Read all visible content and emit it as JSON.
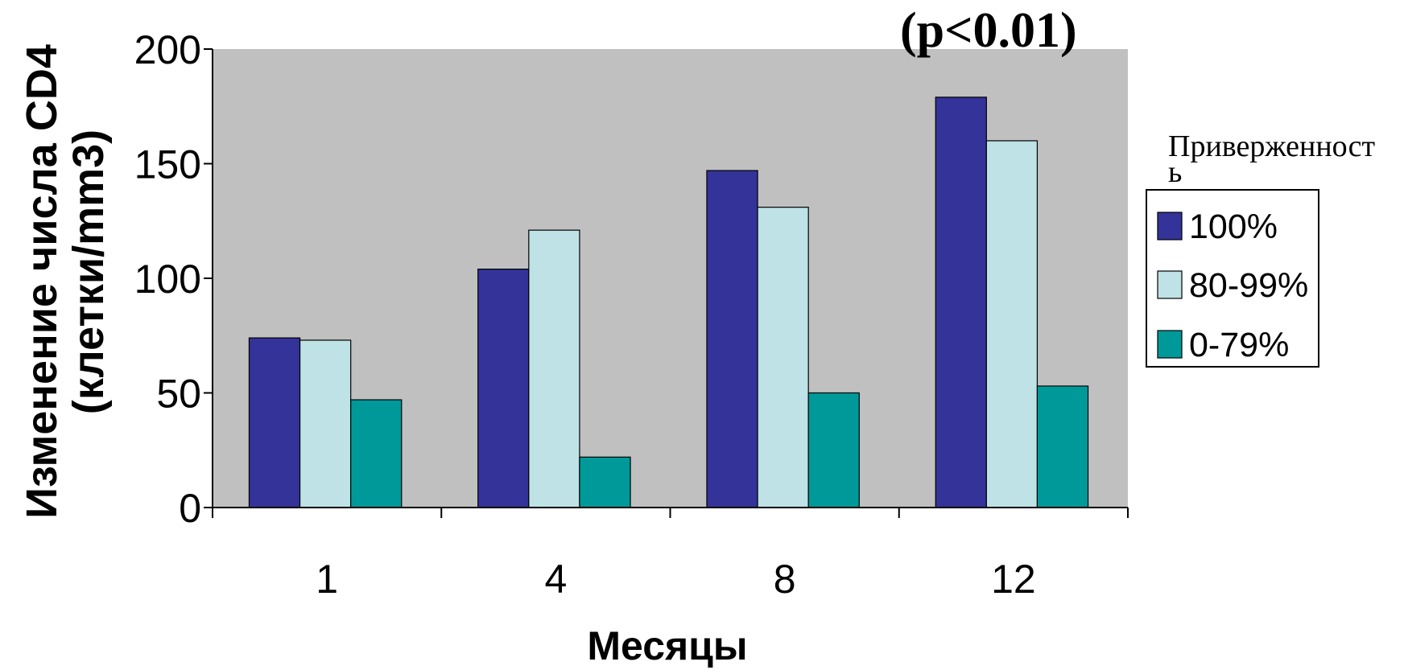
{
  "chart_data": {
    "type": "bar",
    "title": "(p<0.01)",
    "categories": [
      "1",
      "4",
      "8",
      "12"
    ],
    "series": [
      {
        "name": "100%",
        "values": [
          74,
          104,
          147,
          179
        ],
        "color": "#333399"
      },
      {
        "name": "80-99%",
        "values": [
          73,
          121,
          131,
          160
        ],
        "color": "#BEE2E5"
      },
      {
        "name": "0-79%",
        "values": [
          47,
          22,
          50,
          53
        ],
        "color": "#009999"
      }
    ],
    "xlabel": "Месяцы",
    "ylabel": [
      "Изменение числа CD4",
      "(клетки/mm3)"
    ],
    "ylim": [
      0,
      200
    ],
    "yticks": [
      0,
      50,
      100,
      150,
      200
    ],
    "legend_title": [
      "Приверженност",
      "ь"
    ],
    "legend_position": "right",
    "grid": false,
    "plot_background": "#C0C0C0"
  }
}
